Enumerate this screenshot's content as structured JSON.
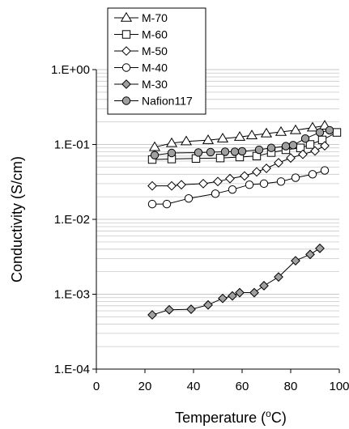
{
  "chart_data": {
    "type": "scatter",
    "xlabel": "Temperature (oC)",
    "xlabel_parts": {
      "prefix": "Temperature (",
      "sup": "o",
      "suffix": "C)"
    },
    "ylabel": "Conductivity (S/cm)",
    "xlim": [
      0,
      100
    ],
    "ylim": [
      0.0001,
      1
    ],
    "yscale": "log",
    "x_ticks": [
      "0",
      "20",
      "40",
      "60",
      "80",
      "100"
    ],
    "y_ticks": [
      "1.E-04",
      "1.E-03",
      "1.E-02",
      "1.E-01",
      "1.E+00"
    ],
    "grid": "horizontal major and minor",
    "legend_position": "top-left",
    "series": [
      {
        "name": "M-70",
        "marker": "triangle-open",
        "x": [
          24,
          31,
          37,
          46,
          52,
          59,
          64,
          70,
          76,
          82,
          89,
          94
        ],
        "y": [
          0.092,
          0.104,
          0.11,
          0.114,
          0.12,
          0.126,
          0.132,
          0.14,
          0.147,
          0.155,
          0.168,
          0.178
        ]
      },
      {
        "name": "M-60",
        "marker": "square-open",
        "x": [
          23,
          31,
          41,
          51,
          59,
          66,
          72,
          78,
          84,
          88,
          93,
          99
        ],
        "y": [
          0.063,
          0.064,
          0.065,
          0.066,
          0.068,
          0.07,
          0.078,
          0.085,
          0.09,
          0.1,
          0.115,
          0.145
        ]
      },
      {
        "name": "M-50",
        "marker": "diamond-open",
        "x": [
          23,
          31,
          35,
          44,
          50,
          55,
          61,
          66,
          70,
          75,
          80,
          85,
          90,
          94
        ],
        "y": [
          0.028,
          0.028,
          0.029,
          0.03,
          0.032,
          0.035,
          0.038,
          0.043,
          0.048,
          0.057,
          0.066,
          0.074,
          0.082,
          0.096
        ]
      },
      {
        "name": "M-40",
        "marker": "circle-open",
        "x": [
          23,
          29,
          38,
          49,
          56,
          63,
          69,
          76,
          82,
          89,
          94
        ],
        "y": [
          0.016,
          0.016,
          0.019,
          0.022,
          0.025,
          0.029,
          0.03,
          0.032,
          0.036,
          0.04,
          0.045
        ]
      },
      {
        "name": "M-30",
        "marker": "diamond-filled",
        "x": [
          23,
          30,
          39,
          46,
          52,
          56,
          59,
          65,
          69,
          75,
          82,
          88,
          92
        ],
        "y": [
          0.00053,
          0.00062,
          0.00063,
          0.00072,
          0.00088,
          0.00095,
          0.00105,
          0.00105,
          0.0013,
          0.0017,
          0.0028,
          0.0034,
          0.0041
        ]
      },
      {
        "name": "Nafion117",
        "marker": "circle-filled",
        "x": [
          24,
          31,
          42,
          47,
          53,
          57,
          60,
          67,
          72,
          78,
          81,
          86,
          92,
          96
        ],
        "y": [
          0.072,
          0.077,
          0.078,
          0.079,
          0.08,
          0.08,
          0.081,
          0.085,
          0.09,
          0.095,
          0.098,
          0.12,
          0.145,
          0.155
        ]
      }
    ]
  },
  "colors": {
    "axis": "#000000",
    "grid": "#c8c8c8",
    "marker_fill_gray": "#a0a0a0",
    "marker_open_fill": "#ffffff"
  }
}
